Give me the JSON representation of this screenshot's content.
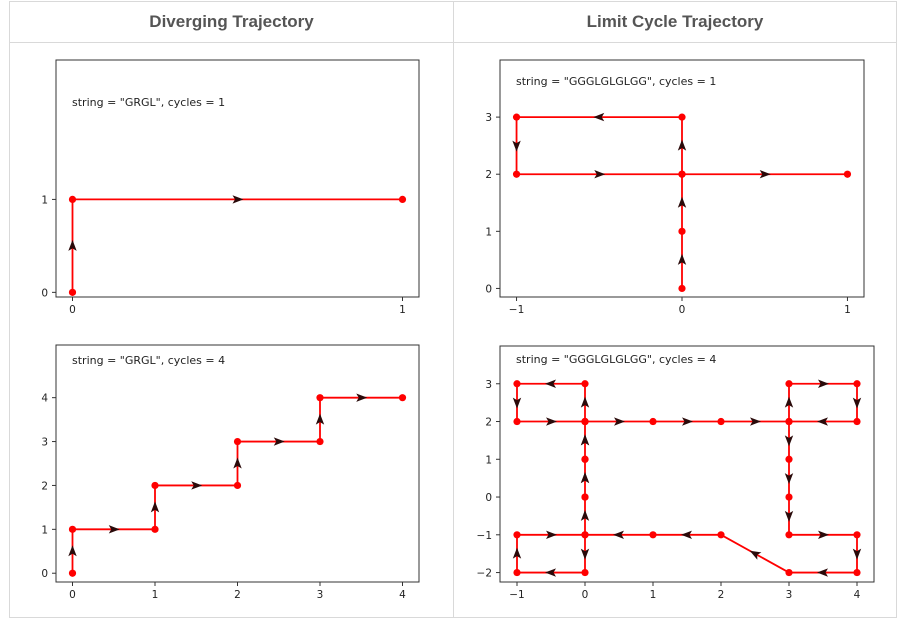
{
  "headers": {
    "left": "Diverging Trajectory",
    "right": "Limit Cycle Trajectory"
  },
  "colors": {
    "path": "#ff0000",
    "arrow": "#2a0a0a",
    "axis": "#333333"
  },
  "chart_data": [
    {
      "type": "line",
      "annotation": "string = \"GRGL\", cycles = 1",
      "xticks": [
        0,
        1
      ],
      "yticks": [
        0,
        1
      ],
      "xlim": [
        -0.05,
        1.05
      ],
      "ylim": [
        -0.05,
        2.5
      ],
      "x": [
        0,
        0,
        1
      ],
      "y": [
        0,
        1,
        1
      ]
    },
    {
      "type": "line",
      "annotation": "string = \"GGGLGLGLGG\", cycles = 1",
      "xticks": [
        -1,
        0,
        1
      ],
      "yticks": [
        0,
        1,
        2,
        3
      ],
      "xlim": [
        -1.1,
        1.1
      ],
      "ylim": [
        -0.15,
        4.0
      ],
      "x": [
        0,
        0,
        0,
        0,
        -1,
        -1,
        0,
        1
      ],
      "y": [
        0,
        1,
        2,
        3,
        3,
        2,
        2,
        2
      ]
    },
    {
      "type": "line",
      "annotation": "string = \"GRGL\", cycles = 4",
      "xticks": [
        0,
        1,
        2,
        3,
        4
      ],
      "yticks": [
        0,
        1,
        2,
        3,
        4
      ],
      "xlim": [
        -0.2,
        4.2
      ],
      "ylim": [
        -0.2,
        5.2
      ],
      "x": [
        0,
        0,
        1,
        1,
        2,
        2,
        3,
        3,
        4
      ],
      "y": [
        0,
        1,
        1,
        2,
        2,
        3,
        3,
        4,
        4
      ]
    },
    {
      "type": "line",
      "annotation": "string = \"GGGLGLGLGG\", cycles = 4",
      "xticks": [
        -1,
        0,
        1,
        2,
        3,
        4
      ],
      "yticks": [
        -2,
        -1,
        0,
        1,
        2,
        3
      ],
      "xlim": [
        -1.25,
        4.25
      ],
      "ylim": [
        -2.25,
        4.0
      ],
      "x": [
        0,
        0,
        0,
        0,
        -1,
        -1,
        0,
        1,
        2,
        3,
        3,
        4,
        4,
        3,
        3,
        3,
        3,
        4,
        4,
        3,
        2,
        1,
        0,
        0,
        -1,
        -1,
        0,
        0,
        0,
        0
      ],
      "y": [
        0,
        1,
        2,
        3,
        3,
        2,
        2,
        2,
        2,
        2,
        3,
        3,
        2,
        2,
        1,
        0,
        -1,
        -1,
        -2,
        -2,
        -1,
        -1,
        -1,
        -2,
        -2,
        -1,
        -1,
        0,
        1,
        2
      ]
    }
  ]
}
